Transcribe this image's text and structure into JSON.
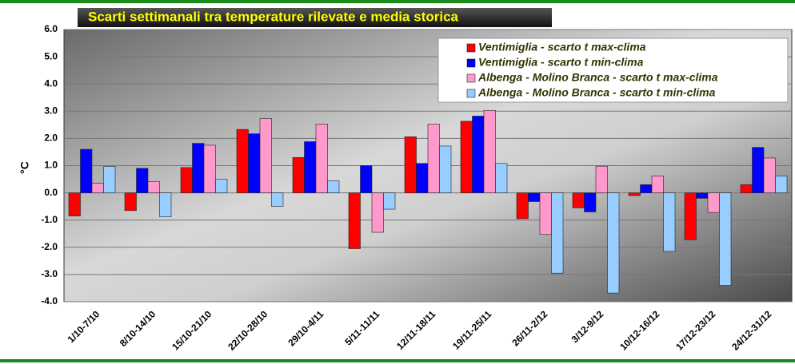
{
  "chart_data": {
    "type": "bar",
    "title": "Scarti settimanali tra temperature rilevate e media storica",
    "y_label": "°C",
    "categories": [
      "1/10-7/10",
      "8/10-14/10",
      "15/10-21/10",
      "22/10-28/10",
      "29/10-4/11",
      "5/11-11/11",
      "12/11-18/11",
      "19/11-25/11",
      "26/11-2/12",
      "3/12-9/12",
      "10/12-16/12",
      "17/12-23/12",
      "24/12-31/12"
    ],
    "series": [
      {
        "name": "Ventimiglia - scarto t max-clima",
        "color": "#ff0000",
        "values": [
          -0.85,
          -0.65,
          0.93,
          2.33,
          1.3,
          -2.05,
          2.06,
          2.63,
          -0.95,
          -0.55,
          -0.1,
          -1.72,
          0.3
        ]
      },
      {
        "name": "Ventimiglia - scarto t min-clima",
        "color": "#0000ff",
        "values": [
          1.6,
          0.9,
          1.82,
          2.17,
          1.88,
          1.0,
          1.08,
          2.82,
          -0.32,
          -0.7,
          0.3,
          -0.2,
          1.67
        ]
      },
      {
        "name": "Albenga - Molino Branca - scarto t max-clima",
        "color": "#ff99cc",
        "values": [
          0.35,
          0.42,
          1.75,
          2.73,
          2.53,
          -1.45,
          2.53,
          3.03,
          -1.53,
          0.98,
          0.62,
          -0.72,
          1.28
        ]
      },
      {
        "name": "Albenga - Molino Branca - scarto t min-clima",
        "color": "#99ccff",
        "values": [
          0.97,
          -0.88,
          0.5,
          -0.5,
          0.44,
          -0.6,
          1.72,
          1.08,
          -2.95,
          -3.68,
          -2.15,
          -3.4,
          0.62
        ]
      }
    ],
    "ylim": [
      -4,
      6
    ],
    "yticks": [
      {
        "value": -4,
        "label": "-4.0"
      },
      {
        "value": -3,
        "label": "-3.0"
      },
      {
        "value": -2,
        "label": "-2.0"
      },
      {
        "value": -1,
        "label": "-1.0"
      },
      {
        "value": 0,
        "label": "0.0"
      },
      {
        "value": 1,
        "label": "1.0"
      },
      {
        "value": 2,
        "label": "2.0"
      },
      {
        "value": 3,
        "label": "3.0"
      },
      {
        "value": 4,
        "label": "4.0"
      },
      {
        "value": 5,
        "label": "5.0"
      },
      {
        "value": 6,
        "label": "6.0"
      }
    ],
    "grid": true,
    "legend": "upper right"
  }
}
